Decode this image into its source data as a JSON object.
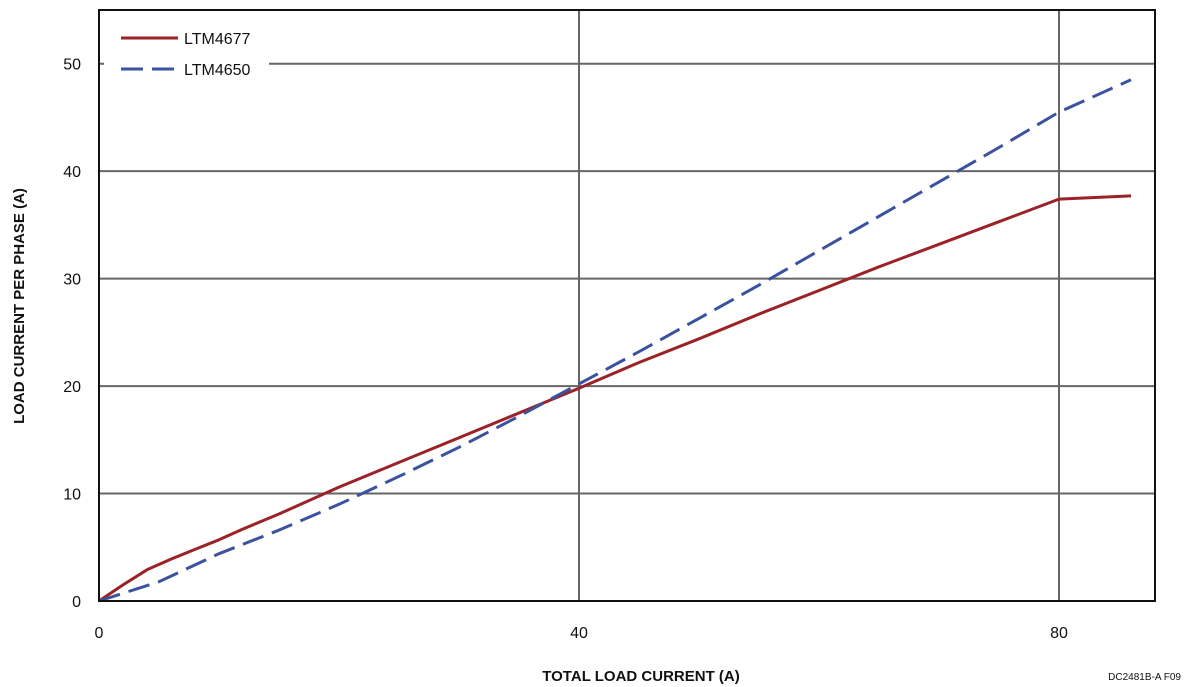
{
  "chart_data": {
    "type": "line",
    "xlabel": "TOTAL LOAD CURRENT (A)",
    "ylabel": "LOAD CURRENT PER PHASE (A)",
    "xlim": [
      0,
      88
    ],
    "ylim": [
      0,
      55
    ],
    "x_ticks": [
      0,
      40,
      80
    ],
    "y_ticks": [
      0,
      10,
      20,
      30,
      40,
      50
    ],
    "grid": true,
    "legend_position": "top-left",
    "figure_code": "DC2481B-A F09",
    "colors": {
      "LTM4677": "#9b2226",
      "LTM4650": "#3b52a0",
      "grid": "#666666",
      "axis": "#111111"
    },
    "series": [
      {
        "name": "LTM4677",
        "style": "solid",
        "x": [
          0,
          2,
          4,
          6,
          8,
          10,
          12,
          15,
          20,
          25,
          30,
          35,
          40,
          45,
          50,
          55,
          60,
          65,
          70,
          75,
          80,
          86
        ],
        "y": [
          0,
          1.5,
          2.9,
          3.9,
          4.8,
          5.7,
          6.7,
          8.1,
          10.6,
          12.9,
          15.2,
          17.5,
          19.8,
          22.2,
          24.4,
          26.7,
          28.9,
          31.1,
          33.2,
          35.3,
          37.4,
          37.7
        ]
      },
      {
        "name": "LTM4650",
        "style": "dashed",
        "x": [
          0,
          5,
          10,
          15,
          20,
          25,
          30,
          35,
          40,
          45,
          50,
          55,
          60,
          65,
          70,
          75,
          80,
          86
        ],
        "y": [
          0,
          1.8,
          4.4,
          6.6,
          9.0,
          11.6,
          14.3,
          17.2,
          20.2,
          23.2,
          26.3,
          29.4,
          32.6,
          35.8,
          39.0,
          42.2,
          45.5,
          48.5
        ]
      }
    ]
  }
}
